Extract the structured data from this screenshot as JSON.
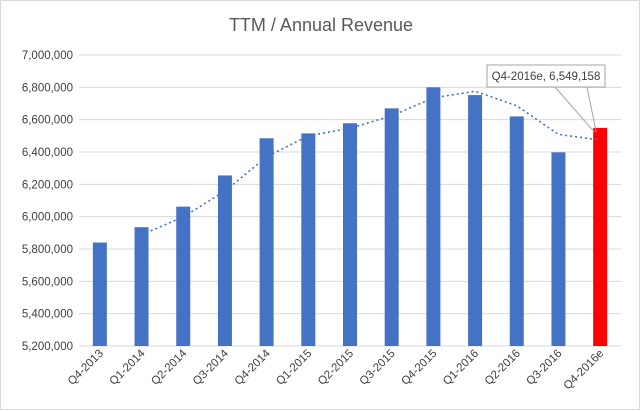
{
  "chart_data": {
    "type": "bar",
    "title": "TTM / Annual Revenue",
    "categories": [
      "Q4-2013",
      "Q1-2014",
      "Q2-2014",
      "Q3-2014",
      "Q4-2014",
      "Q1-2015",
      "Q2-2015",
      "Q3-2015",
      "Q4-2015",
      "Q1-2016",
      "Q2-2016",
      "Q3-2016",
      "Q4-2016e"
    ],
    "values": [
      5840000,
      5935000,
      6062000,
      6255000,
      6485000,
      6515000,
      6578000,
      6670000,
      6800000,
      6752000,
      6620000,
      6398000,
      6549158
    ],
    "ylim": [
      5200000,
      7000000
    ],
    "yticks": [
      5200000,
      5400000,
      5600000,
      5800000,
      6000000,
      6200000,
      6400000,
      6600000,
      6800000,
      7000000
    ],
    "ytick_labels": [
      "5,200,000",
      "5,400,000",
      "5,600,000",
      "5,800,000",
      "6,000,000",
      "6,200,000",
      "6,400,000",
      "6,600,000",
      "6,800,000",
      "7,000,000"
    ],
    "grid": true,
    "legend": "none",
    "trendline": {
      "type": "moving-average",
      "style": "dotted"
    },
    "annotation": {
      "label": "Q4-2016e, 6,549,158",
      "category": "Q4-2016e",
      "value": 6549158
    },
    "colors": {
      "bar": "#4472c4",
      "highlight": "#ff0000",
      "trend": "#4472c4",
      "grid": "#d9d9d9",
      "text": "#595959"
    }
  }
}
